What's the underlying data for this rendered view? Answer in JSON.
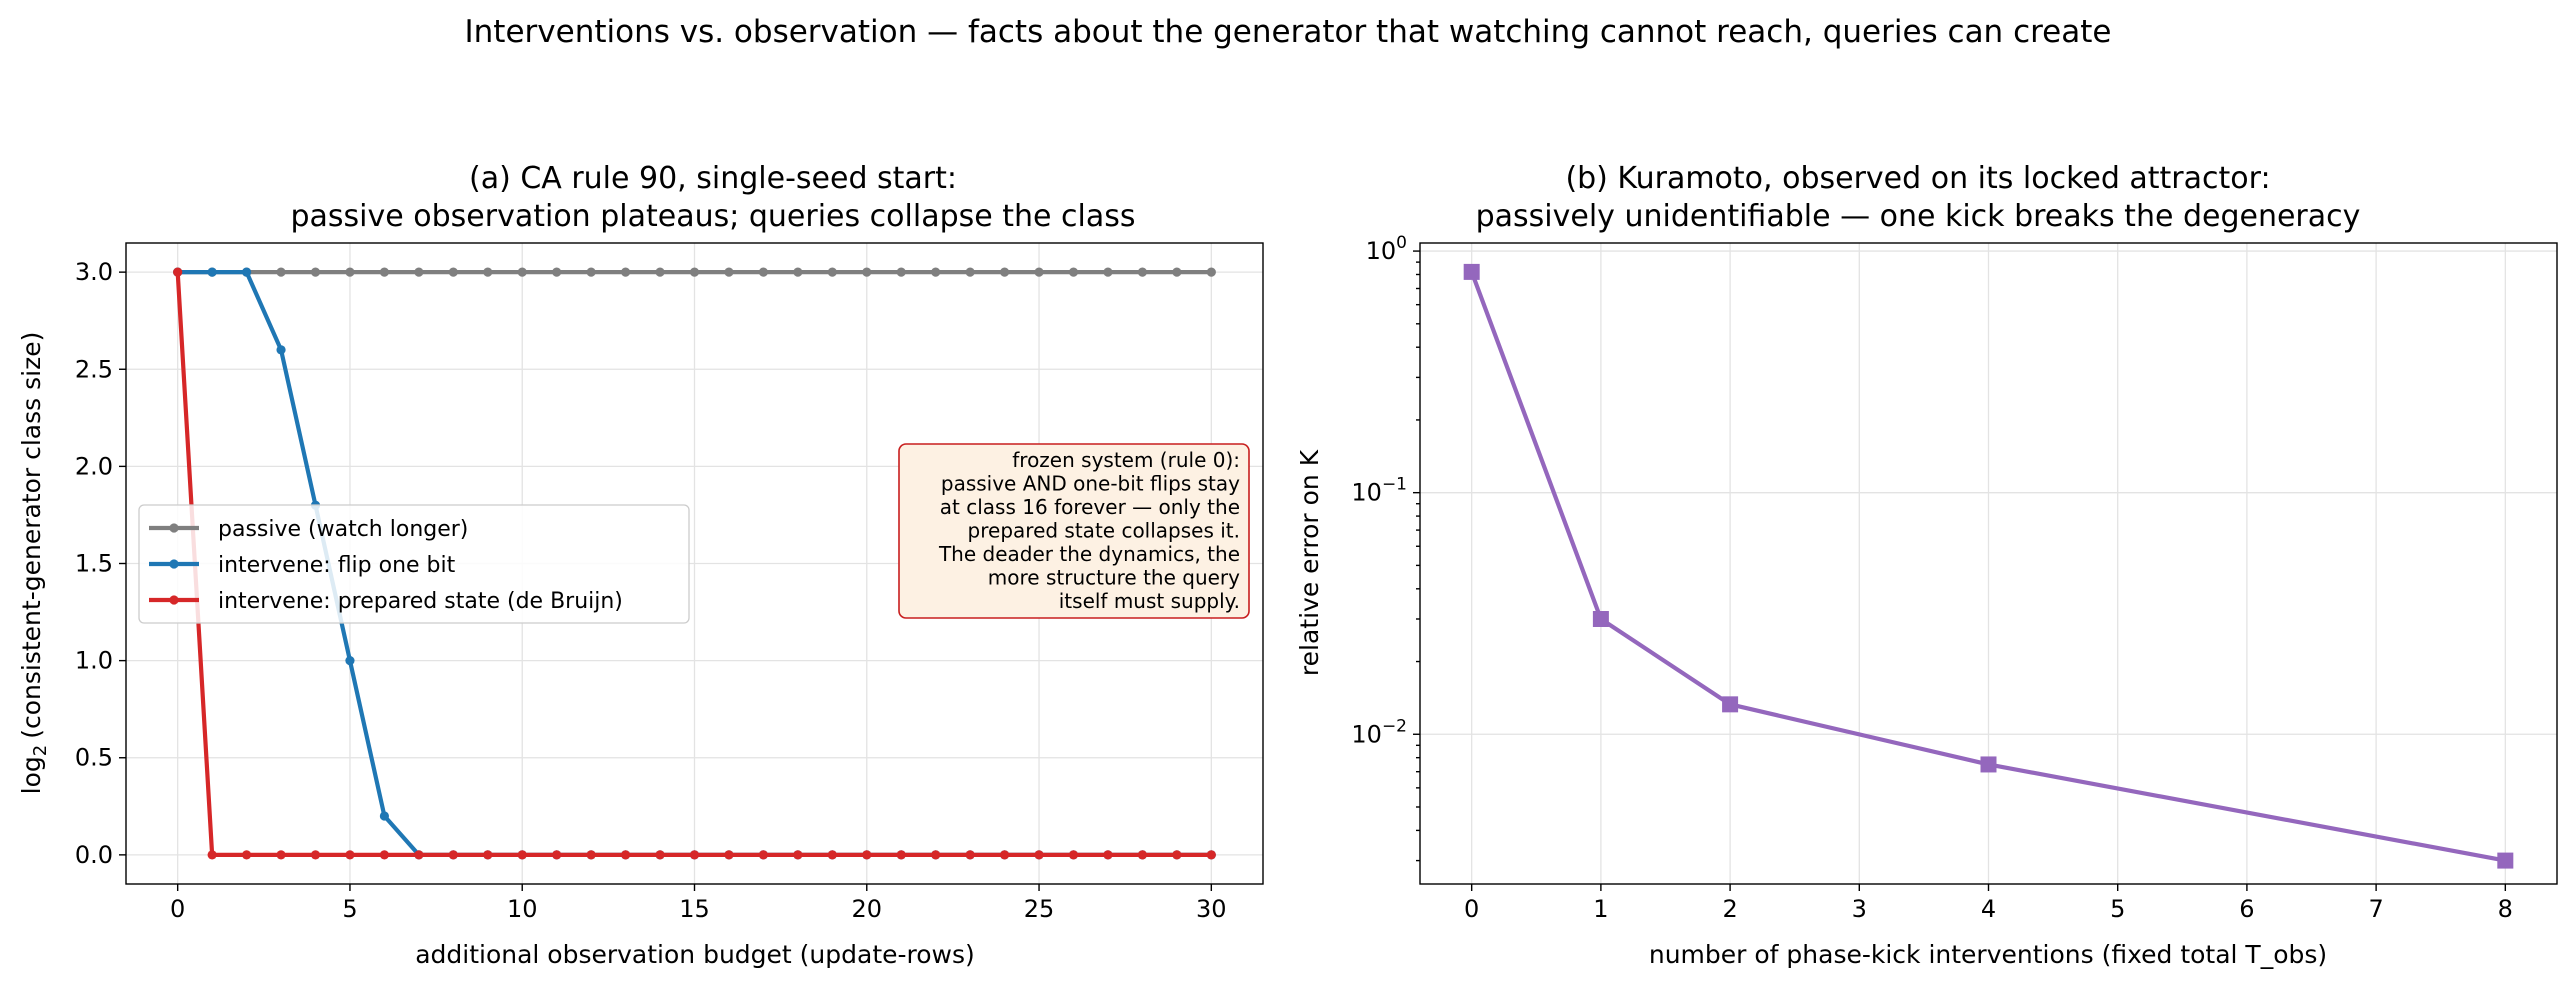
{
  "suptitle": "Interventions vs. observation — facts about the generator that watching cannot reach, queries can create",
  "chart_data": [
    {
      "type": "line",
      "title_line1": "(a) CA rule 90, single-seed start:",
      "title_line2": "passive observation plateaus; queries collapse the class",
      "xlabel": "additional observation budget (update-rows)",
      "ylabel_pre": "log",
      "ylabel_sub": "2",
      "ylabel_post": "(consistent-generator class size)",
      "xlim": [
        -1.5,
        31.5
      ],
      "ylim": [
        -0.15,
        3.15
      ],
      "xticks": [
        0,
        5,
        10,
        15,
        20,
        25,
        30
      ],
      "xtick_labels": [
        "0",
        "5",
        "10",
        "15",
        "20",
        "25",
        "30"
      ],
      "yticks": [
        0.0,
        0.5,
        1.0,
        1.5,
        2.0,
        2.5,
        3.0
      ],
      "ytick_labels": [
        "0.0",
        "0.5",
        "1.0",
        "1.5",
        "2.0",
        "2.5",
        "3.0"
      ],
      "grid": true,
      "legend_position": "center-left",
      "x": [
        0,
        1,
        2,
        3,
        4,
        5,
        6,
        7,
        8,
        9,
        10,
        11,
        12,
        13,
        14,
        15,
        16,
        17,
        18,
        19,
        20,
        21,
        22,
        23,
        24,
        25,
        26,
        27,
        28,
        29,
        30
      ],
      "series": [
        {
          "name": "passive (watch longer)",
          "color": "#7f7f7f",
          "values": [
            3,
            3,
            3,
            3,
            3,
            3,
            3,
            3,
            3,
            3,
            3,
            3,
            3,
            3,
            3,
            3,
            3,
            3,
            3,
            3,
            3,
            3,
            3,
            3,
            3,
            3,
            3,
            3,
            3,
            3,
            3
          ]
        },
        {
          "name": "intervene: flip one bit",
          "color": "#1f77b4",
          "values": [
            3,
            3,
            3,
            2.6,
            1.8,
            1.0,
            0.2,
            0,
            0,
            0,
            0,
            0,
            0,
            0,
            0,
            0,
            0,
            0,
            0,
            0,
            0,
            0,
            0,
            0,
            0,
            0,
            0,
            0,
            0,
            0,
            0
          ]
        },
        {
          "name": "intervene: prepared state (de Bruijn)",
          "color": "#d62728",
          "values": [
            3,
            0,
            0,
            0,
            0,
            0,
            0,
            0,
            0,
            0,
            0,
            0,
            0,
            0,
            0,
            0,
            0,
            0,
            0,
            0,
            0,
            0,
            0,
            0,
            0,
            0,
            0,
            0,
            0,
            0,
            0
          ]
        }
      ],
      "annotation": {
        "lines": [
          "frozen system (rule 0):",
          "passive AND one-bit flips stay",
          "at class 16 forever — only the",
          "prepared state collapses it.",
          "The deader the dynamics, the",
          "more structure the query",
          "itself must supply."
        ],
        "border_color": "#c81e1e",
        "fill_color": "#fdf1e3"
      }
    },
    {
      "type": "line",
      "title_line1": "(b) Kuramoto, observed on its locked attractor:",
      "title_line2": "passively unidentifiable — one kick breaks the degeneracy",
      "xlabel": "number of phase-kick interventions (fixed total T_obs)",
      "ylabel": "relative error on K",
      "yscale": "log",
      "xlim": [
        -0.4,
        8.4
      ],
      "ylim": [
        0.0024,
        1.08
      ],
      "xticks": [
        0,
        1,
        2,
        3,
        4,
        5,
        6,
        7,
        8
      ],
      "xtick_labels": [
        "0",
        "1",
        "2",
        "3",
        "4",
        "5",
        "6",
        "7",
        "8"
      ],
      "ytick_labels": [
        {
          "base": "10",
          "exp": "0",
          "value": 1
        },
        {
          "base": "10",
          "exp": "−1",
          "value": 0.1
        },
        {
          "base": "10",
          "exp": "−2",
          "value": 0.01
        }
      ],
      "grid": true,
      "series": [
        {
          "color": "#9467bd",
          "marker": "square",
          "x": [
            0,
            1,
            2,
            4,
            8
          ],
          "values": [
            0.82,
            0.03,
            0.0133,
            0.0075,
            0.003
          ]
        }
      ]
    }
  ]
}
